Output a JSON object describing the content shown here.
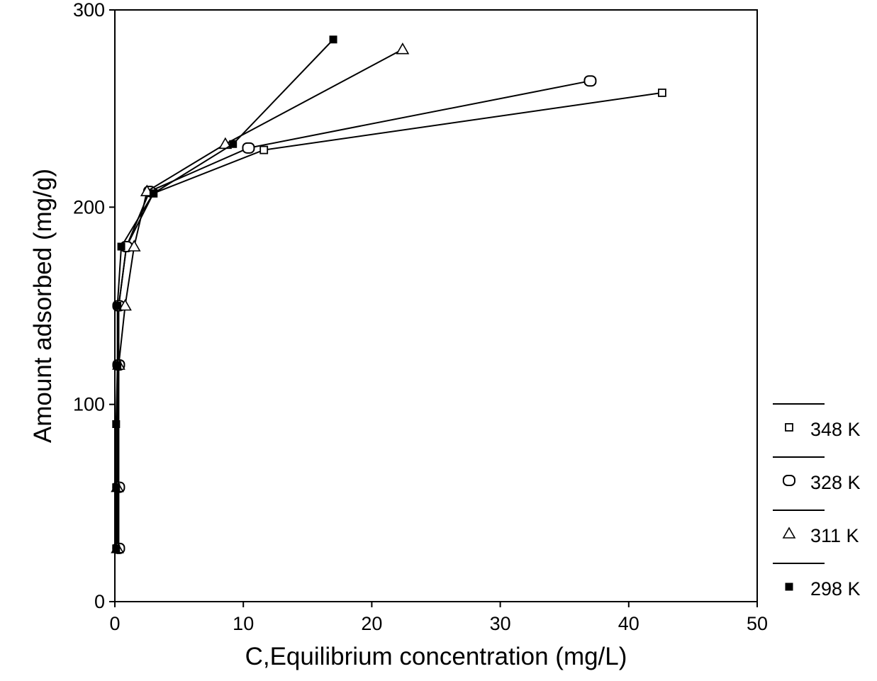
{
  "chart_data": {
    "type": "line",
    "title": "",
    "xlabel": "C,Equilibrium concentration (mg/L)",
    "ylabel": "Amount adsorbed (mg/g)",
    "xlim": [
      0,
      50
    ],
    "ylim": [
      0,
      300
    ],
    "x_ticks": [
      0,
      10,
      20,
      30,
      40,
      50
    ],
    "y_ticks": [
      0,
      100,
      200,
      300
    ],
    "x_tick_labels": [
      "0",
      "10",
      "20",
      "30",
      "40",
      "50"
    ],
    "y_tick_labels": [
      "0",
      "100",
      "200",
      "300"
    ],
    "grid": false,
    "legend_position": "right",
    "series": [
      {
        "name": "348 K",
        "marker": "small-square",
        "color": "#000000",
        "points": [
          [
            0.2,
            27
          ],
          [
            0.2,
            58
          ],
          [
            0.2,
            120
          ],
          [
            0.3,
            150
          ],
          [
            0.9,
            180
          ],
          [
            3.0,
            207
          ],
          [
            11.6,
            229
          ],
          [
            42.6,
            258
          ]
        ]
      },
      {
        "name": "328 K",
        "marker": "circle",
        "color": "#000000",
        "points": [
          [
            0.3,
            27
          ],
          [
            0.3,
            58
          ],
          [
            0.3,
            120
          ],
          [
            0.3,
            150
          ],
          [
            0.9,
            180
          ],
          [
            2.7,
            208
          ],
          [
            10.4,
            230
          ],
          [
            37.0,
            264
          ]
        ]
      },
      {
        "name": "311 K",
        "marker": "triangle",
        "color": "#000000",
        "points": [
          [
            0.2,
            27
          ],
          [
            0.2,
            58
          ],
          [
            0.3,
            120
          ],
          [
            0.8,
            150
          ],
          [
            1.5,
            180
          ],
          [
            2.5,
            208
          ],
          [
            8.6,
            232
          ],
          [
            22.4,
            280
          ]
        ]
      },
      {
        "name": "298 K",
        "marker": "filled-square",
        "color": "#000000",
        "points": [
          [
            0.1,
            27
          ],
          [
            0.1,
            58
          ],
          [
            0.1,
            90
          ],
          [
            0.2,
            120
          ],
          [
            0.2,
            150
          ],
          [
            0.5,
            180
          ],
          [
            3.0,
            207
          ],
          [
            9.2,
            232
          ],
          [
            17.0,
            285
          ]
        ]
      }
    ]
  }
}
